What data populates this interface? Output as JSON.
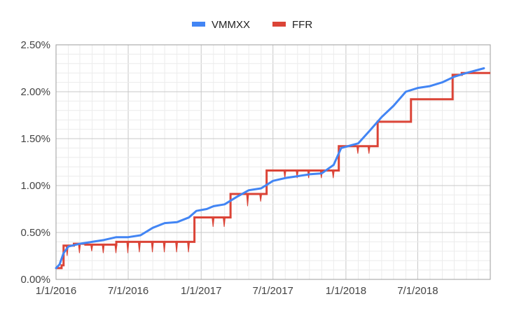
{
  "chart_data": {
    "type": "line",
    "title": "",
    "xlabel": "",
    "ylabel": "",
    "legend_position": "top",
    "grid": true,
    "x_range": [
      "2016-01-01",
      "2018-12-31"
    ],
    "ylim": [
      0,
      2.5
    ],
    "y_ticks": [
      0,
      0.5,
      1.0,
      1.5,
      2.0,
      2.5
    ],
    "y_tick_labels": [
      "0.00%",
      "0.50%",
      "1.00%",
      "1.50%",
      "2.00%",
      "2.50%"
    ],
    "x_ticks": [
      "2016-01-01",
      "2016-07-01",
      "2017-01-01",
      "2017-07-01",
      "2018-01-01",
      "2018-07-01"
    ],
    "x_tick_labels": [
      "1/1/2016",
      "7/1/2016",
      "1/1/2017",
      "7/1/2017",
      "1/1/2018",
      "7/1/2018"
    ],
    "series": [
      {
        "name": "VMMXX",
        "color": "#4285f4",
        "points": [
          [
            "2016-01-01",
            0.12
          ],
          [
            "2016-01-10",
            0.16
          ],
          [
            "2016-01-20",
            0.28
          ],
          [
            "2016-02-01",
            0.35
          ],
          [
            "2016-03-01",
            0.38
          ],
          [
            "2016-04-01",
            0.4
          ],
          [
            "2016-05-01",
            0.42
          ],
          [
            "2016-06-01",
            0.45
          ],
          [
            "2016-07-01",
            0.45
          ],
          [
            "2016-08-01",
            0.47
          ],
          [
            "2016-09-01",
            0.55
          ],
          [
            "2016-10-01",
            0.6
          ],
          [
            "2016-11-01",
            0.61
          ],
          [
            "2016-12-01",
            0.66
          ],
          [
            "2016-12-20",
            0.73
          ],
          [
            "2017-01-15",
            0.75
          ],
          [
            "2017-02-01",
            0.78
          ],
          [
            "2017-03-01",
            0.8
          ],
          [
            "2017-04-01",
            0.88
          ],
          [
            "2017-05-01",
            0.95
          ],
          [
            "2017-06-01",
            0.97
          ],
          [
            "2017-07-01",
            1.05
          ],
          [
            "2017-08-01",
            1.08
          ],
          [
            "2017-09-01",
            1.1
          ],
          [
            "2017-10-01",
            1.12
          ],
          [
            "2017-11-01",
            1.13
          ],
          [
            "2017-12-01",
            1.22
          ],
          [
            "2017-12-20",
            1.4
          ],
          [
            "2018-01-15",
            1.43
          ],
          [
            "2018-02-01",
            1.45
          ],
          [
            "2018-03-01",
            1.58
          ],
          [
            "2018-04-01",
            1.73
          ],
          [
            "2018-05-01",
            1.85
          ],
          [
            "2018-06-01",
            2.0
          ],
          [
            "2018-07-01",
            2.04
          ],
          [
            "2018-08-01",
            2.06
          ],
          [
            "2018-09-01",
            2.1
          ],
          [
            "2018-10-01",
            2.16
          ],
          [
            "2018-11-01",
            2.2
          ],
          [
            "2018-12-15",
            2.25
          ]
        ]
      },
      {
        "name": "FFR",
        "color": "#db4437",
        "steps": [
          [
            "2016-01-01",
            0.12
          ],
          [
            "2016-01-15",
            0.15
          ],
          [
            "2016-01-20",
            0.36
          ],
          [
            "2016-02-15",
            0.38
          ],
          [
            "2016-03-15",
            0.37
          ],
          [
            "2016-06-01",
            0.4
          ],
          [
            "2016-12-15",
            0.66
          ],
          [
            "2017-03-16",
            0.91
          ],
          [
            "2017-06-15",
            1.16
          ],
          [
            "2017-12-14",
            1.42
          ],
          [
            "2018-03-22",
            1.68
          ],
          [
            "2018-06-14",
            1.92
          ],
          [
            "2018-09-27",
            2.18
          ],
          [
            "2018-10-20",
            2.2
          ],
          [
            "2018-12-31",
            2.2
          ]
        ],
        "dips": [
          [
            "2016-01-29",
            0.25
          ],
          [
            "2016-02-29",
            0.28
          ],
          [
            "2016-03-31",
            0.3
          ],
          [
            "2016-04-29",
            0.28
          ],
          [
            "2016-05-31",
            0.28
          ],
          [
            "2016-06-30",
            0.28
          ],
          [
            "2016-07-29",
            0.29
          ],
          [
            "2016-08-31",
            0.29
          ],
          [
            "2016-09-30",
            0.29
          ],
          [
            "2016-10-31",
            0.29
          ],
          [
            "2016-11-30",
            0.29
          ],
          [
            "2017-01-31",
            0.56
          ],
          [
            "2017-02-28",
            0.56
          ],
          [
            "2017-04-28",
            0.78
          ],
          [
            "2017-05-31",
            0.83
          ],
          [
            "2017-07-31",
            1.08
          ],
          [
            "2017-08-31",
            1.08
          ],
          [
            "2017-09-29",
            1.08
          ],
          [
            "2017-10-31",
            1.08
          ],
          [
            "2017-11-30",
            1.08
          ],
          [
            "2018-01-31",
            1.34
          ],
          [
            "2018-02-28",
            1.34
          ]
        ]
      }
    ]
  }
}
